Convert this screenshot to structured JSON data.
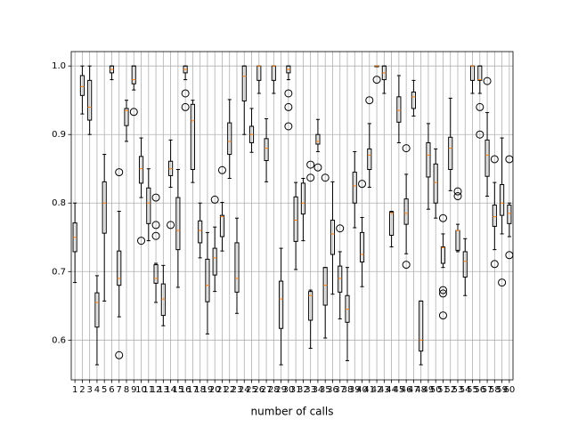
{
  "chart_data": {
    "type": "box",
    "xlabel": "number of calls",
    "categories": [
      "1",
      "2",
      "3",
      "4",
      "5",
      "6",
      "7",
      "8",
      "9",
      "10",
      "11",
      "12",
      "13",
      "14",
      "15",
      "16",
      "17",
      "18",
      "19",
      "20",
      "21",
      "22",
      "23",
      "24",
      "25",
      "26",
      "27",
      "28",
      "29",
      "30",
      "31",
      "32",
      "33",
      "34",
      "35",
      "36",
      "37",
      "38",
      "39",
      "40",
      "41",
      "42",
      "43",
      "44",
      "45",
      "46",
      "47",
      "48",
      "49",
      "50",
      "51",
      "52",
      "53",
      "54",
      "55",
      "56",
      "57",
      "58",
      "59",
      "60"
    ],
    "boxes": [
      {
        "low": 0.684,
        "q1": 0.729,
        "med": 0.75,
        "q3": 0.771,
        "high": 0.8,
        "fliers": []
      },
      {
        "low": 0.93,
        "q1": 0.957,
        "med": 0.97,
        "q3": 0.986,
        "high": 1.0,
        "fliers": []
      },
      {
        "low": 0.9,
        "q1": 0.921,
        "med": 0.94,
        "q3": 0.979,
        "high": 1.0,
        "fliers": []
      },
      {
        "low": 0.564,
        "q1": 0.619,
        "med": 0.655,
        "q3": 0.669,
        "high": 0.694,
        "fliers": []
      },
      {
        "low": 0.657,
        "q1": 0.756,
        "med": 0.8,
        "q3": 0.831,
        "high": 0.871,
        "fliers": []
      },
      {
        "low": 0.98,
        "q1": 0.99,
        "med": 0.995,
        "q3": 1.0,
        "high": 1.0,
        "fliers": []
      },
      {
        "low": 0.634,
        "q1": 0.68,
        "med": 0.69,
        "q3": 0.73,
        "high": 0.788,
        "fliers": [
          0.845,
          0.578
        ]
      },
      {
        "low": 0.89,
        "q1": 0.913,
        "med": 0.935,
        "q3": 0.938,
        "high": 0.95,
        "fliers": []
      },
      {
        "low": 0.965,
        "q1": 0.974,
        "med": 0.98,
        "q3": 1.0,
        "high": 1.0,
        "fliers": [
          0.933
        ]
      },
      {
        "low": 0.808,
        "q1": 0.829,
        "med": 0.85,
        "q3": 0.868,
        "high": 0.895,
        "fliers": [
          0.745
        ]
      },
      {
        "low": 0.745,
        "q1": 0.77,
        "med": 0.8,
        "q3": 0.822,
        "high": 0.85,
        "fliers": []
      },
      {
        "low": 0.655,
        "q1": 0.683,
        "med": 0.69,
        "q3": 0.71,
        "high": 0.712,
        "fliers": [
          0.808,
          0.768,
          0.752
        ]
      },
      {
        "low": 0.621,
        "q1": 0.636,
        "med": 0.66,
        "q3": 0.682,
        "high": 0.709,
        "fliers": []
      },
      {
        "low": 0.823,
        "q1": 0.84,
        "med": 0.85,
        "q3": 0.861,
        "high": 0.892,
        "fliers": [
          0.768
        ]
      },
      {
        "low": 0.677,
        "q1": 0.732,
        "med": 0.76,
        "q3": 0.808,
        "high": 0.849,
        "fliers": []
      },
      {
        "low": 0.98,
        "q1": 0.99,
        "med": 0.995,
        "q3": 1.0,
        "high": 1.0,
        "fliers": [
          0.96,
          0.94
        ]
      },
      {
        "low": 0.83,
        "q1": 0.849,
        "med": 0.92,
        "q3": 0.944,
        "high": 0.95,
        "fliers": []
      },
      {
        "low": 0.72,
        "q1": 0.742,
        "med": 0.76,
        "q3": 0.774,
        "high": 0.8,
        "fliers": []
      },
      {
        "low": 0.609,
        "q1": 0.656,
        "med": 0.68,
        "q3": 0.718,
        "high": 0.757,
        "fliers": []
      },
      {
        "low": 0.671,
        "q1": 0.695,
        "med": 0.72,
        "q3": 0.734,
        "high": 0.765,
        "fliers": [
          0.805
        ]
      },
      {
        "low": 0.73,
        "q1": 0.751,
        "med": 0.78,
        "q3": 0.782,
        "high": 0.801,
        "fliers": [
          0.848
        ]
      },
      {
        "low": 0.836,
        "q1": 0.871,
        "med": 0.89,
        "q3": 0.917,
        "high": 0.951,
        "fliers": []
      },
      {
        "low": 0.639,
        "q1": 0.67,
        "med": 0.69,
        "q3": 0.742,
        "high": 0.778,
        "fliers": []
      },
      {
        "low": 0.9,
        "q1": 0.949,
        "med": 0.985,
        "q3": 1.0,
        "high": 1.0,
        "fliers": []
      },
      {
        "low": 0.874,
        "q1": 0.888,
        "med": 0.9,
        "q3": 0.912,
        "high": 0.938,
        "fliers": []
      },
      {
        "low": 0.96,
        "q1": 0.979,
        "med": 1.0,
        "q3": 1.0,
        "high": 1.0,
        "fliers": []
      },
      {
        "low": 0.831,
        "q1": 0.862,
        "med": 0.88,
        "q3": 0.894,
        "high": 0.923,
        "fliers": []
      },
      {
        "low": 0.96,
        "q1": 0.979,
        "med": 1.0,
        "q3": 1.0,
        "high": 1.0,
        "fliers": []
      },
      {
        "low": 0.564,
        "q1": 0.617,
        "med": 0.66,
        "q3": 0.686,
        "high": 0.734,
        "fliers": []
      },
      {
        "low": 0.98,
        "q1": 0.99,
        "med": 0.995,
        "q3": 1.0,
        "high": 1.0,
        "fliers": [
          0.96,
          0.94,
          0.912
        ]
      },
      {
        "low": 0.703,
        "q1": 0.744,
        "med": 0.775,
        "q3": 0.809,
        "high": 0.83,
        "fliers": []
      },
      {
        "low": 0.745,
        "q1": 0.784,
        "med": 0.8,
        "q3": 0.829,
        "high": 0.836,
        "fliers": []
      },
      {
        "low": 0.588,
        "q1": 0.629,
        "med": 0.665,
        "q3": 0.671,
        "high": 0.673,
        "fliers": [
          0.856,
          0.837
        ]
      },
      {
        "low": 0.875,
        "q1": 0.886,
        "med": 0.89,
        "q3": 0.9,
        "high": 0.922,
        "fliers": [
          0.852
        ]
      },
      {
        "low": 0.603,
        "q1": 0.651,
        "med": 0.68,
        "q3": 0.706,
        "high": 0.706,
        "fliers": [
          0.837
        ]
      },
      {
        "low": 0.667,
        "q1": 0.725,
        "med": 0.755,
        "q3": 0.775,
        "high": 0.831,
        "fliers": []
      },
      {
        "low": 0.631,
        "q1": 0.67,
        "med": 0.69,
        "q3": 0.708,
        "high": 0.729,
        "fliers": [
          0.763
        ]
      },
      {
        "low": 0.57,
        "q1": 0.626,
        "med": 0.645,
        "q3": 0.665,
        "high": 0.706,
        "fliers": []
      },
      {
        "low": 0.764,
        "q1": 0.8,
        "med": 0.825,
        "q3": 0.845,
        "high": 0.875,
        "fliers": []
      },
      {
        "low": 0.678,
        "q1": 0.714,
        "med": 0.725,
        "q3": 0.757,
        "high": 0.779,
        "fliers": [
          0.828
        ]
      },
      {
        "low": 0.823,
        "q1": 0.849,
        "med": 0.87,
        "q3": 0.879,
        "high": 0.916,
        "fliers": [
          0.95
        ]
      },
      {
        "low": 0.999,
        "q1": 0.999,
        "med": 1.0,
        "q3": 1.0,
        "high": 1.0,
        "fliers": [
          0.98
        ]
      },
      {
        "low": 0.96,
        "q1": 0.98,
        "med": 0.99,
        "q3": 1.0,
        "high": 1.0,
        "fliers": []
      },
      {
        "low": 0.736,
        "q1": 0.753,
        "med": 0.785,
        "q3": 0.787,
        "high": 0.788,
        "fliers": []
      },
      {
        "low": 0.888,
        "q1": 0.918,
        "med": 0.935,
        "q3": 0.955,
        "high": 0.986,
        "fliers": []
      },
      {
        "low": 0.726,
        "q1": 0.769,
        "med": 0.785,
        "q3": 0.806,
        "high": 0.842,
        "fliers": [
          0.88,
          0.71
        ]
      },
      {
        "low": 0.927,
        "q1": 0.938,
        "med": 0.955,
        "q3": 0.962,
        "high": 0.979,
        "fliers": []
      },
      {
        "low": 0.564,
        "q1": 0.584,
        "med": 0.6,
        "q3": 0.657,
        "high": 0.657,
        "fliers": []
      },
      {
        "low": 0.791,
        "q1": 0.838,
        "med": 0.87,
        "q3": 0.888,
        "high": 0.916,
        "fliers": []
      },
      {
        "low": 0.778,
        "q1": 0.8,
        "med": 0.83,
        "q3": 0.857,
        "high": 0.879,
        "fliers": []
      },
      {
        "low": 0.706,
        "q1": 0.712,
        "med": 0.735,
        "q3": 0.736,
        "high": 0.755,
        "fliers": [
          0.778,
          0.673,
          0.668,
          0.636
        ]
      },
      {
        "low": 0.818,
        "q1": 0.849,
        "med": 0.88,
        "q3": 0.896,
        "high": 0.953,
        "fliers": []
      },
      {
        "low": 0.729,
        "q1": 0.731,
        "med": 0.76,
        "q3": 0.76,
        "high": 0.769,
        "fliers": [
          0.817,
          0.81
        ]
      },
      {
        "low": 0.665,
        "q1": 0.692,
        "med": 0.715,
        "q3": 0.729,
        "high": 0.748,
        "fliers": []
      },
      {
        "low": 0.96,
        "q1": 0.979,
        "med": 1.0,
        "q3": 1.0,
        "high": 1.0,
        "fliers": []
      },
      {
        "low": 0.96,
        "q1": 0.979,
        "med": 0.98,
        "q3": 1.0,
        "high": 1.0,
        "fliers": [
          0.94,
          0.9
        ]
      },
      {
        "low": 0.81,
        "q1": 0.839,
        "med": 0.87,
        "q3": 0.892,
        "high": 0.932,
        "fliers": [
          0.978
        ]
      },
      {
        "low": 0.732,
        "q1": 0.766,
        "med": 0.78,
        "q3": 0.797,
        "high": 0.83,
        "fliers": [
          0.864,
          0.711
        ]
      },
      {
        "low": 0.755,
        "q1": 0.782,
        "med": 0.8,
        "q3": 0.827,
        "high": 0.895,
        "fliers": [
          0.684
        ]
      },
      {
        "low": 0.751,
        "q1": 0.77,
        "med": 0.785,
        "q3": 0.797,
        "high": 0.8,
        "fliers": [
          0.864,
          0.724
        ]
      }
    ],
    "box_color": "#000000",
    "median_color": "#ff7f0e",
    "ylim": [
      0.542,
      1.021
    ],
    "yticks": [
      0.6,
      0.7,
      0.8,
      0.9,
      {
        "value": 1.0,
        "label": "1.0"
      }
    ],
    "grid": true
  }
}
